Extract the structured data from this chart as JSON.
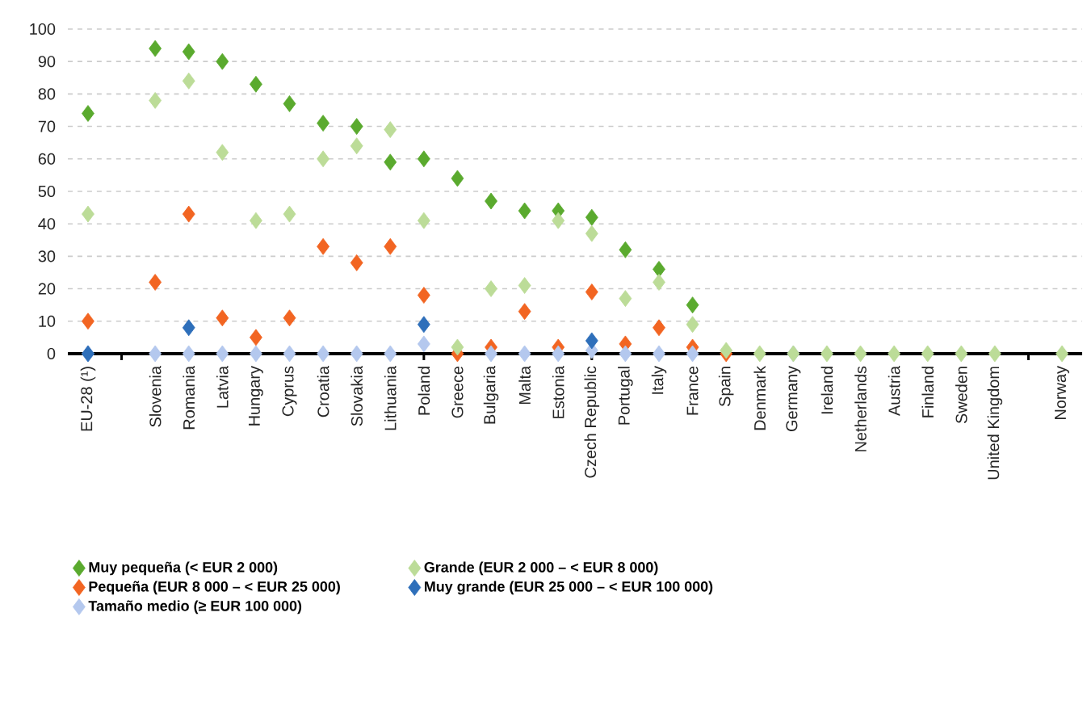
{
  "chart_data": {
    "type": "scatter",
    "categories": [
      "EU-28 (¹)",
      null,
      "Slovenia",
      "Romania",
      "Latvia",
      "Hungary",
      "Cyprus",
      "Croatia",
      "Slovakia",
      "Lithuania",
      "Poland",
      "Greece",
      "Bulgaria",
      "Malta",
      "Estonia",
      "Czech Republic",
      "Portugal",
      "Italy",
      "France",
      "Spain",
      "Denmark",
      "Germany",
      "Ireland",
      "Netherlands",
      "Austria",
      "Finland",
      "Sweden",
      "United Kingdom",
      null,
      "Norway"
    ],
    "series": [
      {
        "name": "Muy pequeña (< EUR 2 000)",
        "color": "#5aaa2e",
        "values": [
          74,
          null,
          94,
          93,
          90,
          83,
          77,
          71,
          70,
          59,
          60,
          54,
          47,
          44,
          44,
          42,
          32,
          26,
          15,
          null,
          null,
          null,
          null,
          null,
          null,
          null,
          null,
          null,
          null,
          null
        ]
      },
      {
        "name": "Pequeña (EUR 8 000 – < EUR 25 000)",
        "color": "#f26522",
        "values": [
          10,
          null,
          22,
          43,
          11,
          5,
          11,
          33,
          28,
          33,
          18,
          0,
          2,
          13,
          2,
          19,
          3,
          8,
          2,
          0,
          null,
          null,
          null,
          null,
          null,
          null,
          null,
          null,
          null,
          null
        ]
      },
      {
        "name": "Tamaño medio (≥ EUR 100 000)",
        "color": "#b4c8ee",
        "values": [
          0,
          null,
          0,
          0,
          0,
          0,
          0,
          0,
          0,
          0,
          3,
          null,
          0,
          0,
          0,
          1,
          0,
          0,
          0,
          null,
          null,
          0,
          null,
          null,
          null,
          null,
          null,
          null,
          null,
          null
        ]
      },
      {
        "name": "Grande (EUR 2 000 – < EUR 8 000)",
        "color": "#bcdc98",
        "values": [
          43,
          null,
          78,
          84,
          62,
          41,
          43,
          60,
          64,
          69,
          41,
          2,
          20,
          21,
          41,
          37,
          17,
          22,
          9,
          1,
          0,
          0,
          0,
          0,
          0,
          0,
          0,
          0,
          null,
          0
        ]
      },
      {
        "name": "Muy grande (EUR 25 000 – < EUR 100 000)",
        "color": "#2e6fba",
        "values": [
          0,
          null,
          null,
          8,
          null,
          null,
          null,
          null,
          null,
          null,
          9,
          null,
          null,
          null,
          null,
          4,
          null,
          null,
          null,
          null,
          null,
          null,
          null,
          null,
          null,
          null,
          null,
          null,
          null,
          null
        ]
      }
    ],
    "ylim": [
      0,
      100
    ],
    "yticks": [
      0,
      10,
      20,
      30,
      40,
      50,
      60,
      70,
      80,
      90,
      100
    ],
    "grid": "y",
    "legend": "bottom",
    "marker": "diamond"
  }
}
